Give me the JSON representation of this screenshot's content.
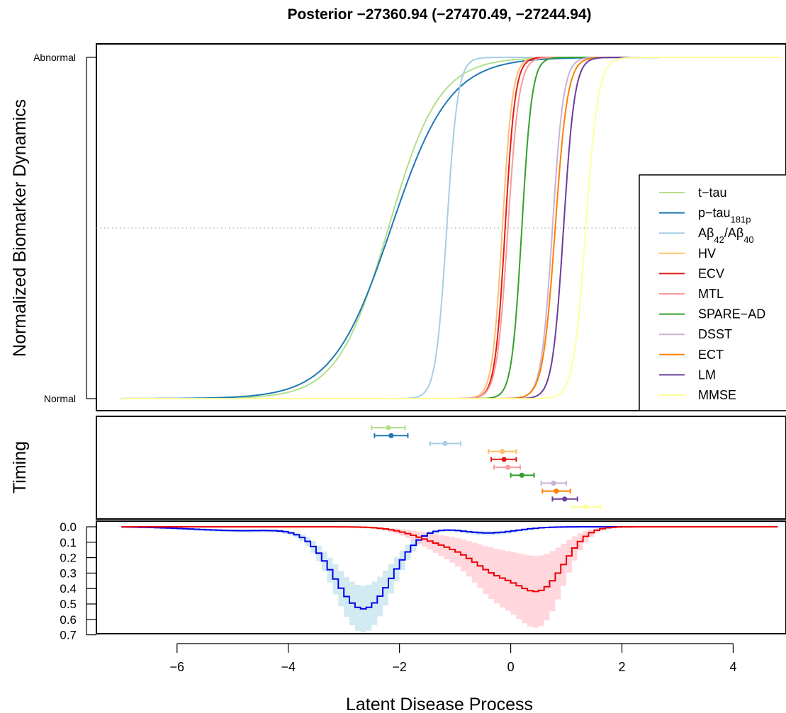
{
  "title": "Posterior −27360.94 (−27470.49, −27244.94)",
  "xlabel": "Latent Disease Process",
  "chart_data": [
    {
      "type": "line",
      "panel": "dynamics",
      "ylabel": "Normalized Biomarker Dynamics",
      "xlim": [
        -7.45,
        4.95
      ],
      "ylim": [
        0,
        1
      ],
      "y_tick_labels": [
        "Normal",
        "Abnormal"
      ],
      "reference_line_y": 0.5,
      "legend_position": "right",
      "series": [
        {
          "name": "t−tau",
          "color": "#B2DF8A",
          "midpoint": -2.2,
          "slope": 2.2
        },
        {
          "name": "p−tau",
          "name_sub": "181p",
          "color": "#1F78B4",
          "midpoint": -2.15,
          "slope": 1.9
        },
        {
          "name": "Aβ",
          "name_sub": "42",
          "name_mid": "/Aβ",
          "name_sub2": "40",
          "color": "#A6CEE3",
          "midpoint": -1.15,
          "slope": 10
        },
        {
          "name": "HV",
          "color": "#FDBF6F",
          "midpoint": -0.15,
          "slope": 11
        },
        {
          "name": "ECV",
          "color": "#E31A1C",
          "midpoint": -0.1,
          "slope": 11
        },
        {
          "name": "MTL",
          "color": "#FB9A99",
          "midpoint": -0.05,
          "slope": 10
        },
        {
          "name": "SPARE−AD",
          "color": "#33A02C",
          "midpoint": 0.2,
          "slope": 11
        },
        {
          "name": "DSST",
          "color": "#CAB2D6",
          "midpoint": 0.75,
          "slope": 10
        },
        {
          "name": "ECT",
          "color": "#FF7F00",
          "midpoint": 0.8,
          "slope": 9
        },
        {
          "name": "LM",
          "color": "#6A3D9A",
          "midpoint": 0.95,
          "slope": 10
        },
        {
          "name": "MMSE",
          "color": "#FFFF99",
          "midpoint": 1.35,
          "slope": 9
        }
      ]
    },
    {
      "type": "scatter",
      "panel": "timing",
      "ylabel": "Timing",
      "points": [
        {
          "series": "t−tau",
          "x": -2.2,
          "lo": -2.5,
          "hi": -1.9,
          "color": "#B2DF8A"
        },
        {
          "series": "p−tau181p",
          "x": -2.15,
          "lo": -2.45,
          "hi": -1.85,
          "color": "#1F78B4"
        },
        {
          "series": "Aβ42/Aβ40",
          "x": -1.18,
          "lo": -1.45,
          "hi": -0.9,
          "color": "#A6CEE3"
        },
        {
          "series": "HV",
          "x": -0.15,
          "lo": -0.4,
          "hi": 0.1,
          "color": "#FDBF6F"
        },
        {
          "series": "ECV",
          "x": -0.12,
          "lo": -0.35,
          "hi": 0.1,
          "color": "#E31A1C"
        },
        {
          "series": "MTL",
          "x": -0.05,
          "lo": -0.3,
          "hi": 0.17,
          "color": "#FB9A99"
        },
        {
          "series": "SPARE−AD",
          "x": 0.2,
          "lo": 0.0,
          "hi": 0.42,
          "color": "#33A02C"
        },
        {
          "series": "DSST",
          "x": 0.77,
          "lo": 0.55,
          "hi": 1.0,
          "color": "#CAB2D6"
        },
        {
          "series": "ECT",
          "x": 0.82,
          "lo": 0.57,
          "hi": 1.07,
          "color": "#FF7F00"
        },
        {
          "series": "LM",
          "x": 0.97,
          "lo": 0.75,
          "hi": 1.2,
          "color": "#6A3D9A"
        },
        {
          "series": "MMSE",
          "x": 1.35,
          "lo": 1.1,
          "hi": 1.62,
          "color": "#FFFF99"
        }
      ]
    },
    {
      "type": "area",
      "panel": "density",
      "ylim": [
        0,
        0.7
      ],
      "y_reversed": true,
      "yticks": [
        0.0,
        0.1,
        0.2,
        0.3,
        0.4,
        0.5,
        0.6,
        0.7
      ],
      "y_tick_labels": [
        "0.0",
        "0.1",
        "0.2",
        "0.3",
        "0.4",
        "0.5",
        "0.6",
        "0.7"
      ],
      "xticks": [
        -6,
        -4,
        -2,
        0,
        2,
        4
      ],
      "x_tick_labels": [
        "−6",
        "−4",
        "−2",
        "0",
        "2",
        "4"
      ],
      "x_range": [
        -7.0,
        4.85
      ],
      "step": 0.1,
      "series": [
        {
          "color": "#0000EE",
          "band_color": "#ADD8E6",
          "components": [
            {
              "mu": -2.65,
              "sigma": 0.52,
              "amp": 0.53
            },
            {
              "mu": -0.4,
              "sigma": 0.5,
              "amp": 0.04
            },
            {
              "mu": -4.8,
              "sigma": 0.9,
              "amp": 0.025
            }
          ],
          "band_factor": 0.28
        },
        {
          "color": "#EE0000",
          "band_color": "#FFB6C1",
          "components": [
            {
              "mu": -1.0,
              "sigma": 0.6,
              "amp": 0.12
            },
            {
              "mu": -0.25,
              "sigma": 0.4,
              "amp": 0.2
            },
            {
              "mu": 0.55,
              "sigma": 0.42,
              "amp": 0.38
            }
          ],
          "band_factor": 0.55
        }
      ]
    }
  ]
}
